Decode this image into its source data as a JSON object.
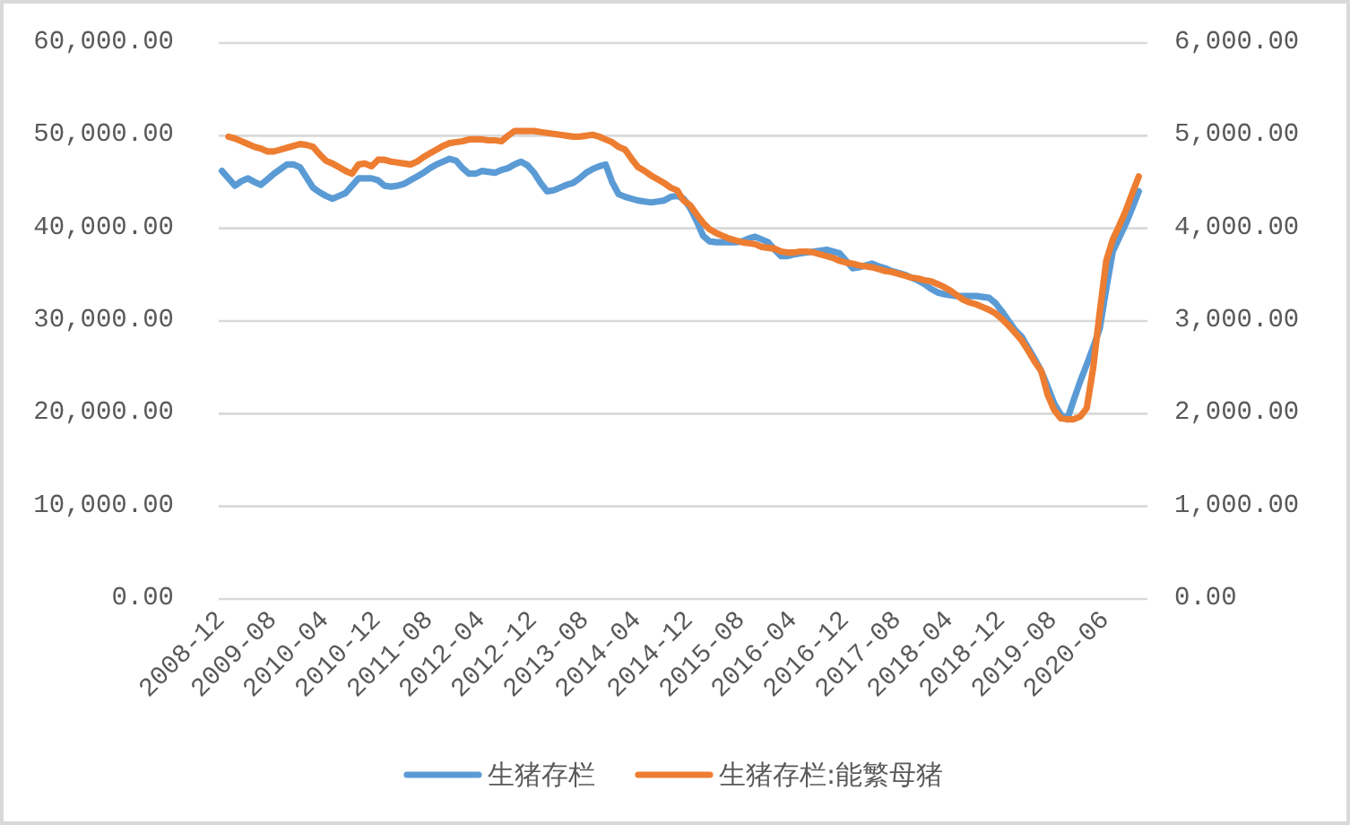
{
  "chart_data": {
    "type": "line",
    "categories": [
      "2008-12",
      null,
      null,
      null,
      null,
      null,
      null,
      null,
      "2009-08",
      null,
      null,
      null,
      null,
      null,
      null,
      null,
      "2010-04",
      null,
      null,
      null,
      null,
      null,
      null,
      null,
      "2010-12",
      null,
      null,
      null,
      null,
      null,
      null,
      null,
      "2011-08",
      null,
      null,
      null,
      null,
      null,
      null,
      null,
      "2012-04",
      null,
      null,
      null,
      null,
      null,
      null,
      null,
      "2012-12",
      null,
      null,
      null,
      null,
      null,
      null,
      null,
      "2013-08",
      null,
      null,
      null,
      null,
      null,
      null,
      null,
      "2014-04",
      null,
      null,
      null,
      null,
      null,
      null,
      null,
      "2014-12",
      null,
      null,
      null,
      null,
      null,
      null,
      null,
      "2015-08",
      null,
      null,
      null,
      null,
      null,
      null,
      null,
      "2016-04",
      null,
      null,
      null,
      null,
      null,
      null,
      null,
      "2016-12",
      null,
      null,
      null,
      null,
      null,
      null,
      null,
      "2017-08",
      null,
      null,
      null,
      null,
      null,
      null,
      null,
      "2018-04",
      null,
      null,
      null,
      null,
      null,
      null,
      null,
      "2018-12",
      null,
      null,
      null,
      null,
      null,
      null,
      null,
      "2019-08",
      null,
      null,
      null,
      null,
      null,
      null,
      null,
      "2020-06",
      null,
      null,
      null,
      null,
      null
    ],
    "series": [
      {
        "name": "生猪存栏",
        "color": "#5b9bd5",
        "values": [
          46200,
          45400,
          44600,
          45100,
          45400,
          45000,
          44700,
          45300,
          45900,
          46400,
          46900,
          46900,
          46600,
          45500,
          44400,
          43900,
          43500,
          43200,
          43500,
          43800,
          44600,
          45400,
          45400,
          45400,
          45200,
          44600,
          44500,
          44600,
          44800,
          45200,
          45600,
          46000,
          46500,
          46900,
          47200,
          47500,
          47300,
          46500,
          45900,
          45900,
          46200,
          46100,
          46000,
          46300,
          46500,
          46900,
          47200,
          46800,
          46000,
          44900,
          44000,
          44100,
          44400,
          44700,
          44900,
          45400,
          46000,
          46400,
          46700,
          46900,
          45000,
          43700,
          43400,
          43200,
          43000,
          42900,
          42800,
          42900,
          43000,
          43400,
          43500,
          43200,
          42200,
          40800,
          39200,
          38600,
          38500,
          38500,
          38500,
          38500,
          38600,
          38900,
          39100,
          38800,
          38500,
          37700,
          37000,
          37000,
          37200,
          37300,
          37400,
          37500,
          37600,
          37700,
          37500,
          37300,
          36500,
          35700,
          35800,
          36000,
          36200,
          35900,
          35700,
          35400,
          35200,
          35000,
          34700,
          34400,
          34000,
          33500,
          33100,
          32900,
          32800,
          32700,
          32700,
          32700,
          32700,
          32600,
          32500,
          31900,
          31000,
          30000,
          29000,
          28300,
          27100,
          25900,
          24600,
          22900,
          21100,
          19900,
          19400,
          21500,
          23500,
          25300,
          27200,
          29200,
          33500,
          37500,
          39000,
          40500,
          42200,
          44000
        ]
      },
      {
        "name": "生猪存栏:能繁母猪",
        "color": "#ed7d31",
        "axis": "y2",
        "values": [
          null,
          4990,
          4970,
          4940,
          4910,
          4880,
          4860,
          4830,
          4830,
          4850,
          4870,
          4890,
          4910,
          4900,
          4880,
          4800,
          4730,
          4700,
          4660,
          4620,
          4590,
          4690,
          4700,
          4670,
          4740,
          4740,
          4720,
          4710,
          4700,
          4690,
          4720,
          4770,
          4810,
          4850,
          4890,
          4920,
          4930,
          4940,
          4960,
          4960,
          4960,
          4950,
          4950,
          4940,
          5000,
          5050,
          5050,
          5050,
          5050,
          5040,
          5030,
          5020,
          5010,
          5000,
          4990,
          4990,
          5000,
          5010,
          4990,
          4960,
          4930,
          4880,
          4850,
          4750,
          4660,
          4620,
          4570,
          4530,
          4490,
          4440,
          4410,
          4300,
          4250,
          4150,
          4060,
          3990,
          3950,
          3920,
          3890,
          3870,
          3850,
          3840,
          3830,
          3800,
          3790,
          3780,
          3750,
          3740,
          3740,
          3750,
          3750,
          3740,
          3720,
          3700,
          3680,
          3650,
          3630,
          3620,
          3600,
          3590,
          3580,
          3560,
          3540,
          3530,
          3510,
          3490,
          3470,
          3460,
          3440,
          3430,
          3400,
          3370,
          3330,
          3280,
          3230,
          3200,
          3180,
          3150,
          3120,
          3080,
          3020,
          2950,
          2870,
          2790,
          2680,
          2560,
          2460,
          2200,
          2040,
          1950,
          1940,
          1940,
          1970,
          2060,
          2500,
          3100,
          3650,
          3880,
          4030,
          4190,
          4380,
          4560
        ]
      }
    ],
    "ylim": [
      0,
      60000
    ],
    "yticks": [
      {
        "value": 0,
        "label": "0.00"
      },
      {
        "value": 10000,
        "label": "10,000.00"
      },
      {
        "value": 20000,
        "label": "20,000.00"
      },
      {
        "value": 30000,
        "label": "30,000.00"
      },
      {
        "value": 40000,
        "label": "40,000.00"
      },
      {
        "value": 50000,
        "label": "50,000.00"
      },
      {
        "value": 60000,
        "label": "60,000.00"
      }
    ],
    "y2lim": [
      0,
      6000
    ],
    "y2ticks": [
      {
        "value": 0,
        "label": "0.00"
      },
      {
        "value": 1000,
        "label": "1,000.00"
      },
      {
        "value": 2000,
        "label": "2,000.00"
      },
      {
        "value": 3000,
        "label": "3,000.00"
      },
      {
        "value": 4000,
        "label": "4,000.00"
      },
      {
        "value": 5000,
        "label": "5,000.00"
      },
      {
        "value": 6000,
        "label": "6,000.00"
      }
    ],
    "grid": "y",
    "legend": "bottom",
    "line_style": "solid"
  }
}
